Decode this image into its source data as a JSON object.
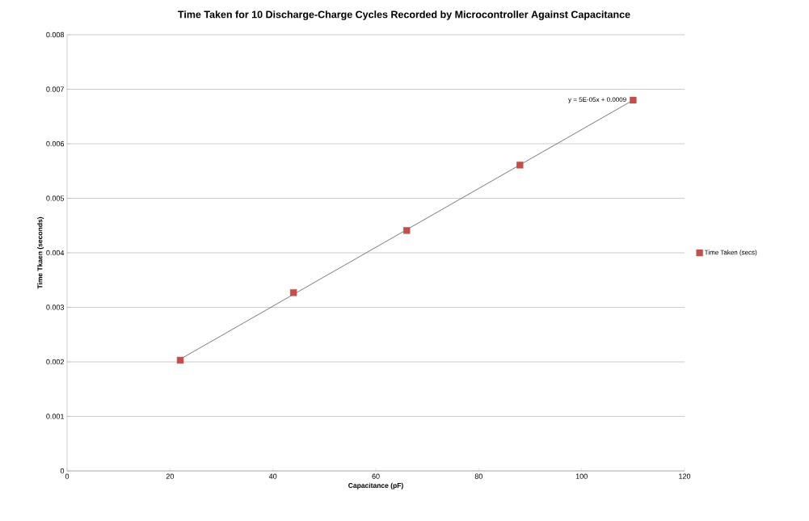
{
  "chart_data": {
    "type": "scatter",
    "title": "Time Taken for 10 Discharge-Charge Cycles Recorded by Microcontroller Against Capacitance",
    "xlabel": "Capacitance (pF)",
    "ylabel": "Time Tkaen (seconds)",
    "series": [
      {
        "name": "Time Taken (secs)",
        "color": "#c0504d",
        "marker": "square",
        "x": [
          22,
          44,
          66,
          88,
          110
        ],
        "values": [
          0.00203,
          0.00327,
          0.00441,
          0.00561,
          0.0068
        ]
      },
      {
        "type": "line",
        "color": "#595959",
        "marker": "none",
        "x": [
          22,
          110
        ],
        "values": [
          0.00205,
          0.0068
        ]
      }
    ],
    "annotations": [
      "y = 5E-05x + 0.0009"
    ],
    "xlim": [
      0,
      120
    ],
    "xticks": [
      0,
      20,
      40,
      60,
      80,
      100,
      120
    ],
    "ylim": [
      0,
      0.008
    ],
    "yticks": [
      0,
      0.001,
      0.002,
      0.003,
      0.004,
      0.005,
      0.006,
      0.007,
      0.008
    ],
    "grid": "y",
    "legend": "right"
  }
}
